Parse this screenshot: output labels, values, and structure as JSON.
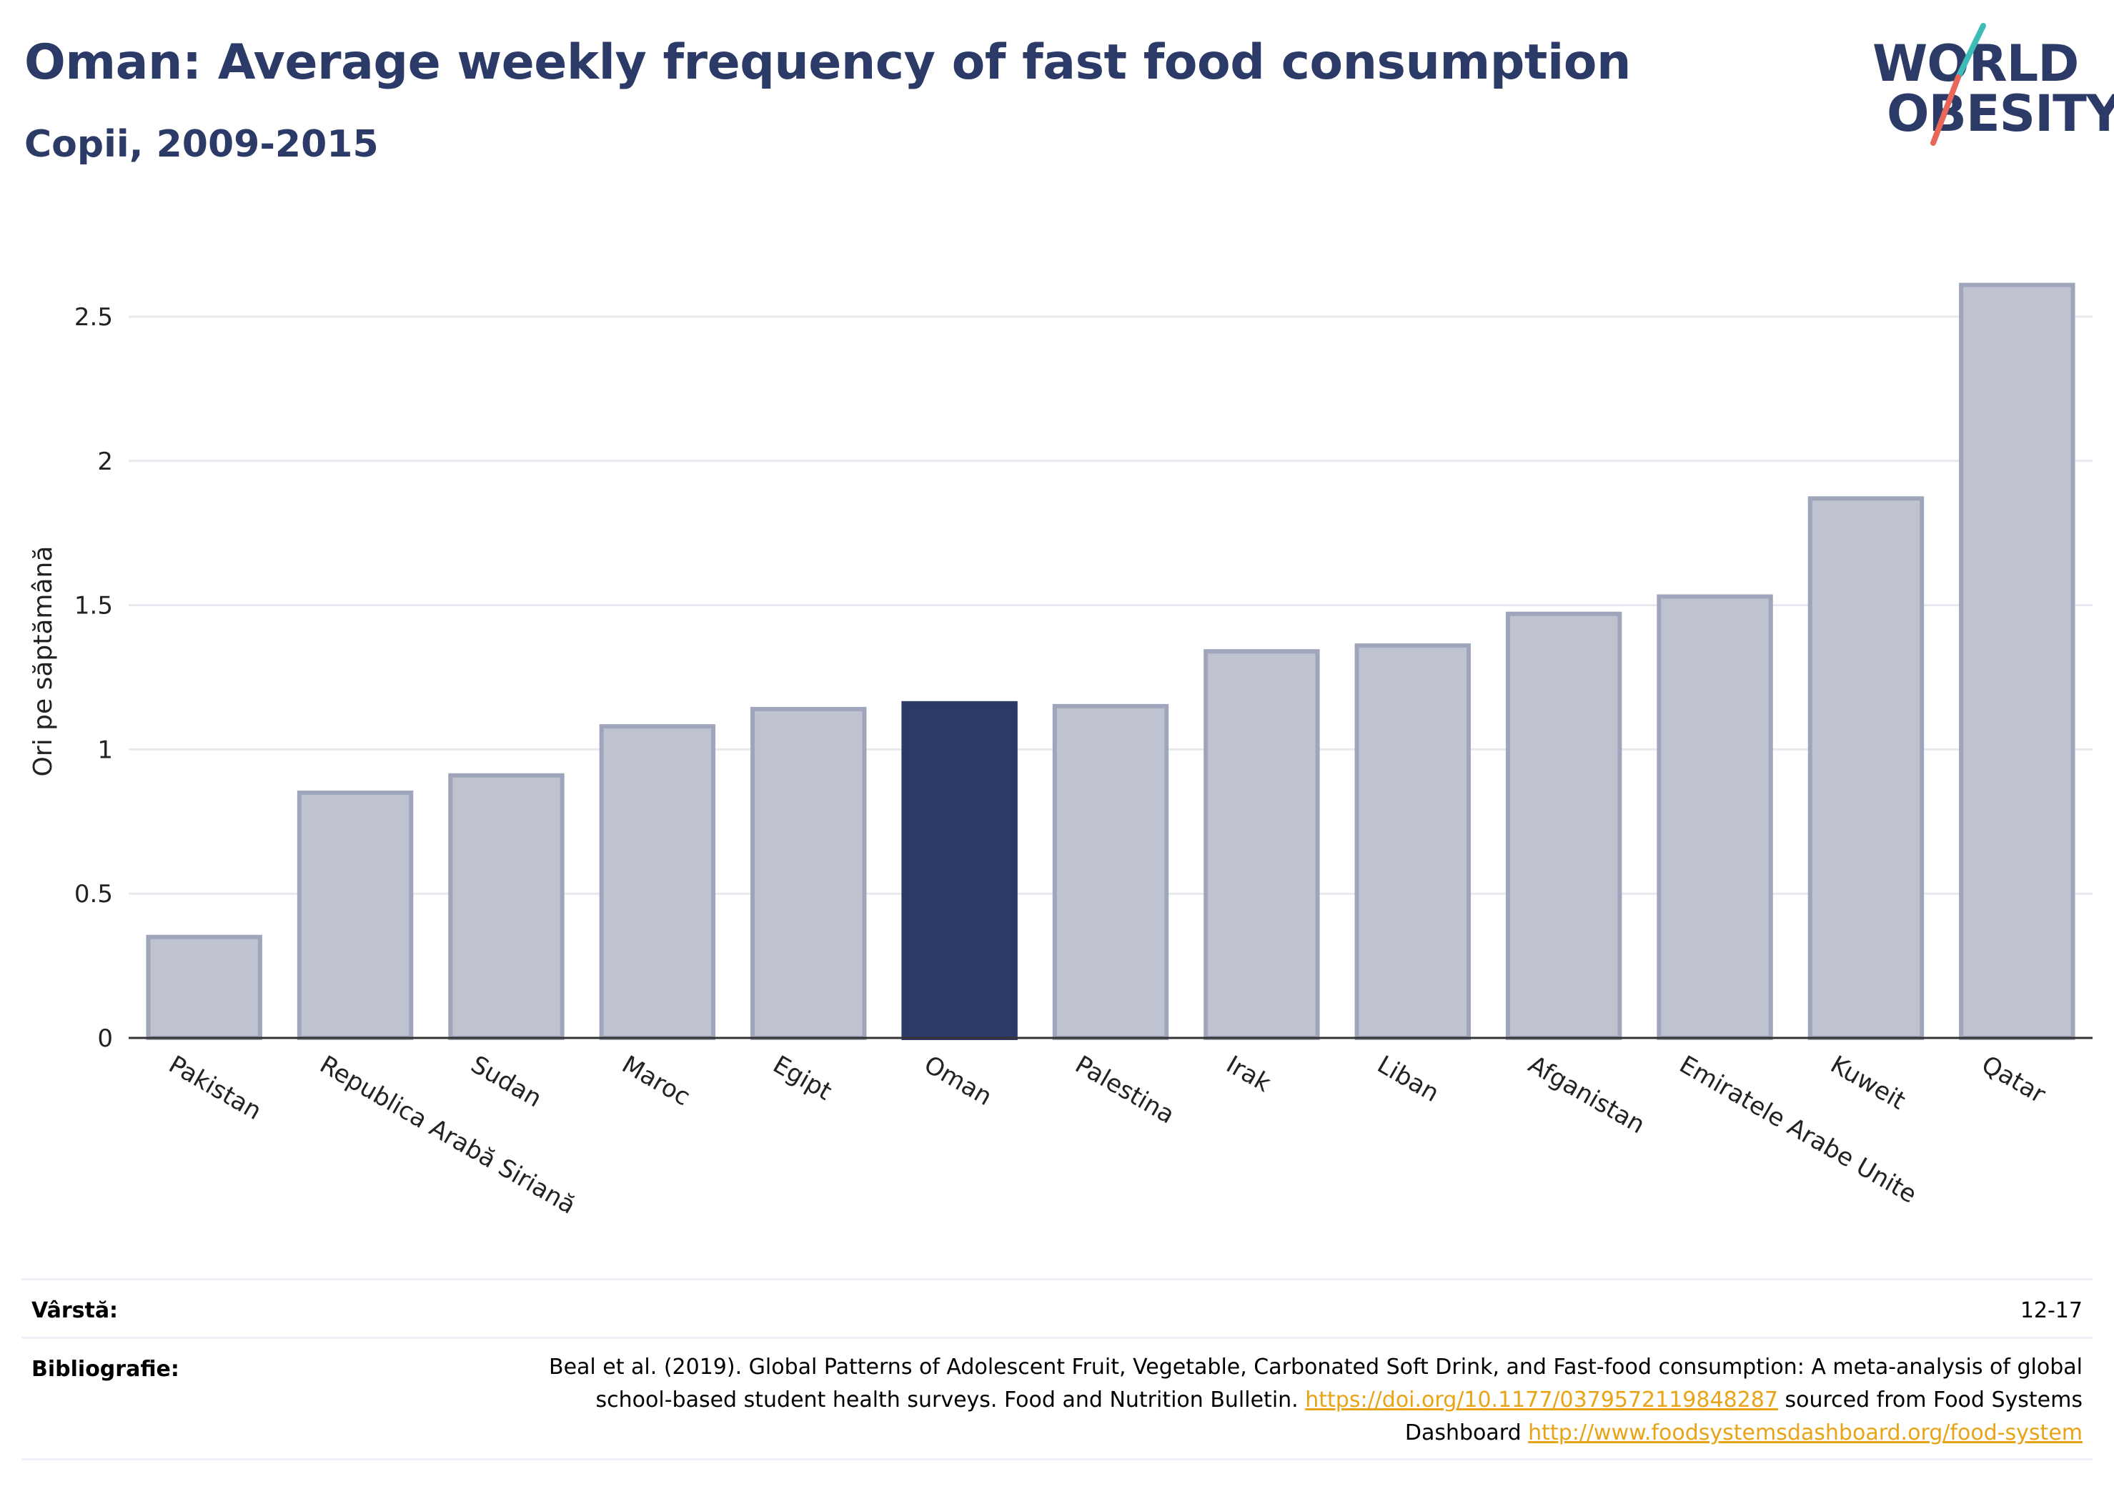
{
  "header": {
    "title": "Oman: Average weekly frequency of fast food consumption",
    "subtitle": "Copii, 2009-2015"
  },
  "logo": {
    "line1": "WORLD",
    "line2": "OBESITY"
  },
  "colors": {
    "highlight": "#2b3a67",
    "bar": "#bfc2cf",
    "bar_border": "#9fa5bb",
    "grid": "#e8e9ef",
    "title": "#2b3a67",
    "link": "#e8a317"
  },
  "chart_data": {
    "type": "bar",
    "title": "Oman: Average weekly frequency of fast food consumption",
    "subtitle": "Copii, 2009-2015",
    "ylabel": "Ori pe săptămână",
    "xlabel": "",
    "categories": [
      "Pakistan",
      "Republica Arabă Siriană",
      "Sudan",
      "Maroc",
      "Egipt",
      "Oman",
      "Palestina",
      "Irak",
      "Liban",
      "Afganistan",
      "Emiratele Arabe Unite",
      "Kuweit",
      "Qatar"
    ],
    "values": [
      0.35,
      0.85,
      0.91,
      1.08,
      1.14,
      1.16,
      1.15,
      1.34,
      1.36,
      1.47,
      1.53,
      1.87,
      2.61
    ],
    "highlight": "Oman",
    "ylim": [
      0,
      2.78
    ],
    "yticks": [
      0,
      0.5,
      1,
      1.5,
      2,
      2.5
    ],
    "ytick_labels": [
      "0",
      "0.5",
      "1",
      "1.5",
      "2",
      "2.5"
    ],
    "grid": true
  },
  "footer": {
    "age_label": "Vârstă:",
    "age_value": "12-17",
    "bib_label": "Bibliografie:",
    "bib_text_1": "Beal et al. (2019). Global Patterns of Adolescent Fruit, Vegetable, Carbonated Soft Drink, and Fast-food consumption: A meta-analysis of global school-based student health surveys. Food and Nutrition Bulletin. ",
    "bib_link_1": "https://doi.org/10.1177/0379572119848287",
    "bib_text_2": " sourced from Food Systems Dashboard ",
    "bib_link_2": "http://www.foodsystemsdashboard.org/food-system"
  }
}
